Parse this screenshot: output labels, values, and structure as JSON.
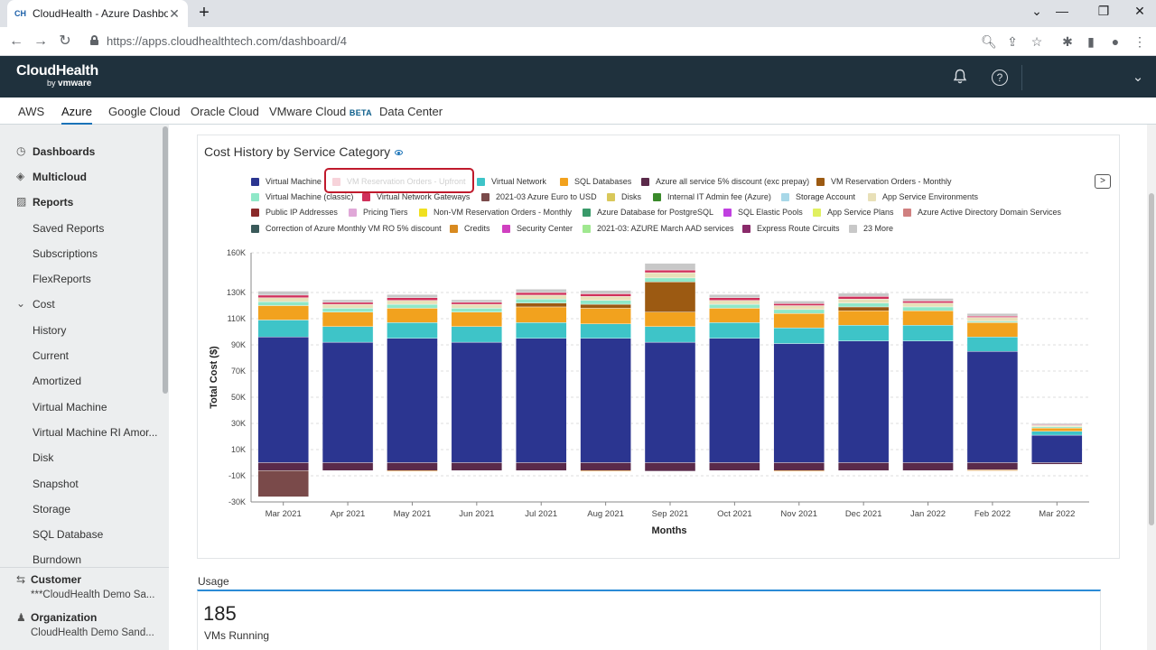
{
  "browser": {
    "tab_title": "CloudHealth - Azure Dashboard",
    "favicon": "CH",
    "url_host": "https://apps.cloudhealthtech.com",
    "url_path": "/dashboard/4"
  },
  "header": {
    "logo_main": "CloudHealth",
    "logo_by": "by",
    "logo_vm": "vmware"
  },
  "cloud_tabs": [
    {
      "label": "AWS"
    },
    {
      "label": "Azure",
      "active": true
    },
    {
      "label": "Google Cloud"
    },
    {
      "label": "Oracle Cloud"
    },
    {
      "label": "VMware Cloud",
      "badge": "BETA"
    },
    {
      "label": "Data Center"
    }
  ],
  "sidebar": {
    "items": [
      {
        "label": "Dashboards",
        "icon": "dashboard-icon"
      },
      {
        "label": "Multicloud",
        "icon": "multicloud-icon"
      },
      {
        "label": "Reports",
        "icon": "reports-icon"
      },
      {
        "label": "Saved Reports"
      },
      {
        "label": "Subscriptions"
      },
      {
        "label": "FlexReports"
      },
      {
        "label": "Cost",
        "icon": "chevron-down-icon"
      },
      {
        "label": "History"
      },
      {
        "label": "Current"
      },
      {
        "label": "Amortized"
      },
      {
        "label": "Virtual Machine"
      },
      {
        "label": "Virtual Machine RI Amor..."
      },
      {
        "label": "Disk"
      },
      {
        "label": "Snapshot"
      },
      {
        "label": "Storage"
      },
      {
        "label": "SQL Database"
      },
      {
        "label": "Burndown"
      }
    ],
    "customer_title": "Customer",
    "customer_value": "***CloudHealth Demo Sa...",
    "org_title": "Organization",
    "org_value": "CloudHealth Demo Sand..."
  },
  "card": {
    "title": "Cost History by Service Category"
  },
  "legend": [
    {
      "name": "Virtual Machine",
      "color": "#2b3590"
    },
    {
      "name": "VM Reservation Orders - Upfront",
      "color": "#f7d3da",
      "faded": true
    },
    {
      "name": "Virtual Network",
      "color": "#3ec4c8"
    },
    {
      "name": "SQL Databases",
      "color": "#f2a21e"
    },
    {
      "name": "Azure all service 5% discount (exc prepay)",
      "color": "#5a2a4a"
    },
    {
      "name": "VM Reservation Orders - Monthly",
      "color": "#9c5a12"
    },
    {
      "name": "Virtual Machine (classic)",
      "color": "#8fe8c8"
    },
    {
      "name": "Virtual Network Gateways",
      "color": "#d0305a"
    },
    {
      "name": "2021-03 Azure Euro to USD",
      "color": "#7a4a4a"
    },
    {
      "name": "Disks",
      "color": "#d9c85a"
    },
    {
      "name": "Internal IT Admin fee (Azure)",
      "color": "#3a8a2a"
    },
    {
      "name": "Storage Account",
      "color": "#a8d8e8"
    },
    {
      "name": "App Service Environments",
      "color": "#e8e0b8"
    },
    {
      "name": "Public IP Addresses",
      "color": "#8a2a2a"
    },
    {
      "name": "Pricing Tiers",
      "color": "#e0a8d8"
    },
    {
      "name": "Non-VM Reservation Orders - Monthly",
      "color": "#f0e020"
    },
    {
      "name": "Azure Database for PostgreSQL",
      "color": "#3a9a6a"
    },
    {
      "name": "SQL Elastic Pools",
      "color": "#c040e0"
    },
    {
      "name": "App Service Plans",
      "color": "#e0f060"
    },
    {
      "name": "Azure Active Directory Domain Services",
      "color": "#d08080"
    },
    {
      "name": "Correction of Azure Monthly VM RO 5% discount",
      "color": "#3a5a5a"
    },
    {
      "name": "Credits",
      "color": "#d88a20"
    },
    {
      "name": "Security Center",
      "color": "#d040c0"
    },
    {
      "name": "2021-03: AZURE March AAD services",
      "color": "#a0e890"
    },
    {
      "name": "Express Route Circuits",
      "color": "#8a2a6a"
    },
    {
      "name": "23 More",
      "color": "#c8c8c8"
    }
  ],
  "chart_data": {
    "type": "bar",
    "stacked": true,
    "ylabel": "Total Cost ($)",
    "xlabel": "Months",
    "ylim": [
      -30000,
      160000
    ],
    "yticks": [
      "160K",
      "130K",
      "110K",
      "90K",
      "70K",
      "50K",
      "30K",
      "10K",
      "-10K",
      "-30K"
    ],
    "grid": true,
    "categories": [
      "Mar 2021",
      "Apr 2021",
      "May 2021",
      "Jun 2021",
      "Jul 2021",
      "Aug 2021",
      "Sep 2021",
      "Oct 2021",
      "Nov 2021",
      "Dec 2021",
      "Jan 2022",
      "Feb 2022",
      "Mar 2022"
    ],
    "series": [
      {
        "name": "Virtual Machine",
        "color": "#2b3590",
        "values": [
          96000,
          92000,
          95000,
          92000,
          95000,
          95000,
          92000,
          95000,
          91000,
          93000,
          93000,
          85000,
          21000
        ]
      },
      {
        "name": "Virtual Network",
        "color": "#3ec4c8",
        "values": [
          13000,
          12000,
          12000,
          12000,
          12000,
          11000,
          12000,
          12000,
          12000,
          12000,
          12000,
          11000,
          3000
        ]
      },
      {
        "name": "SQL Databases",
        "color": "#f2a21e",
        "values": [
          11000,
          11000,
          11000,
          11000,
          12000,
          12000,
          11000,
          11000,
          11000,
          11000,
          11000,
          11000,
          2500
        ]
      },
      {
        "name": "VM Reservation Orders - Monthly",
        "color": "#9c5a12",
        "values": [
          0,
          0,
          0,
          0,
          3000,
          3000,
          23000,
          0,
          0,
          3000,
          0,
          0,
          0
        ]
      },
      {
        "name": "Virtual Machine (classic)",
        "color": "#8fe8c8",
        "values": [
          3000,
          3000,
          3000,
          3000,
          3000,
          3000,
          3000,
          3000,
          3000,
          3000,
          3000,
          1000,
          1000
        ]
      },
      {
        "name": "App Service Environments",
        "color": "#e8e0b8",
        "values": [
          3000,
          3000,
          3000,
          3000,
          3000,
          3000,
          4000,
          3000,
          3000,
          3000,
          3000,
          3000,
          1200
        ]
      },
      {
        "name": "Virtual Network Gateways",
        "color": "#d0305a",
        "values": [
          2000,
          1500,
          2000,
          1500,
          2000,
          2000,
          2000,
          2000,
          1500,
          2000,
          1500,
          1000,
          300
        ]
      },
      {
        "name": "23 More",
        "color": "#c8c8c8",
        "values": [
          3000,
          2000,
          2500,
          2000,
          2500,
          2500,
          5000,
          2500,
          2000,
          2500,
          2000,
          2000,
          1000
        ]
      },
      {
        "name": "Azure all service 5% discount (exc prepay)",
        "color": "#5a2a4a",
        "values": [
          -6000,
          -6000,
          -6000,
          -6000,
          -6000,
          -6000,
          -6500,
          -6000,
          -6000,
          -6000,
          -6000,
          -5500,
          -1200
        ]
      },
      {
        "name": "2021-03 Azure Euro to USD",
        "color": "#7a4a4a",
        "values": [
          -20000,
          0,
          0,
          0,
          0,
          0,
          0,
          0,
          0,
          0,
          0,
          0,
          0
        ]
      },
      {
        "name": "Credits",
        "color": "#d88a20",
        "values": [
          0,
          0,
          -700,
          0,
          0,
          -700,
          0,
          0,
          -700,
          0,
          0,
          -700,
          0
        ]
      }
    ]
  },
  "usage": {
    "label": "Usage",
    "count": "185",
    "sub": "VMs Running"
  }
}
